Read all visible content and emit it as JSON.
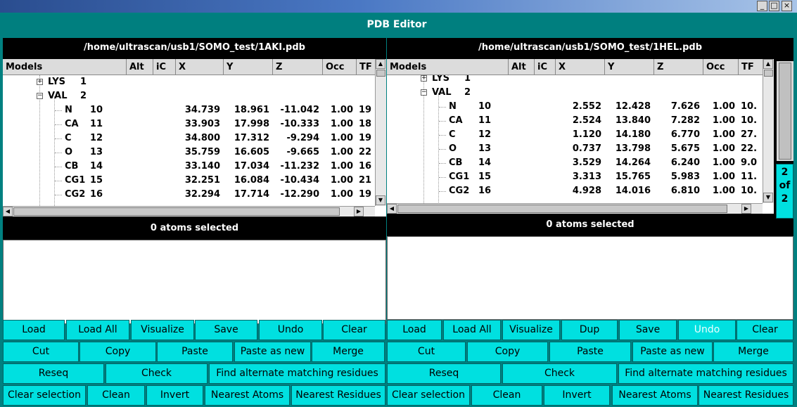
{
  "window": {
    "title": "PDB Editor",
    "buttons": [
      "_",
      "□",
      "×"
    ]
  },
  "columns": [
    "Models",
    "Alt",
    "iC",
    "X",
    "Y",
    "Z",
    "Occ",
    "TF"
  ],
  "left": {
    "path": "/home/ultrascan/usb1/SOMO_test/1AKI.pdb",
    "residues": [
      {
        "name": "LYS",
        "num": "1",
        "expander": "+"
      },
      {
        "name": "VAL",
        "num": "2",
        "expander": "−"
      }
    ],
    "atoms": [
      {
        "name": "N",
        "num": "10",
        "x": "34.739",
        "y": "18.961",
        "z": "-11.042",
        "occ": "1.00",
        "tf": "19"
      },
      {
        "name": "CA",
        "num": "11",
        "x": "33.903",
        "y": "17.998",
        "z": "-10.333",
        "occ": "1.00",
        "tf": "18"
      },
      {
        "name": "C",
        "num": "12",
        "x": "34.800",
        "y": "17.312",
        "z": "-9.294",
        "occ": "1.00",
        "tf": "19"
      },
      {
        "name": "O",
        "num": "13",
        "x": "35.759",
        "y": "16.605",
        "z": "-9.665",
        "occ": "1.00",
        "tf": "22"
      },
      {
        "name": "CB",
        "num": "14",
        "x": "33.140",
        "y": "17.034",
        "z": "-11.232",
        "occ": "1.00",
        "tf": "16"
      },
      {
        "name": "CG1",
        "num": "15",
        "x": "32.251",
        "y": "16.084",
        "z": "-10.434",
        "occ": "1.00",
        "tf": "21"
      },
      {
        "name": "CG2",
        "num": "16",
        "x": "32.294",
        "y": "17.714",
        "z": "-12.290",
        "occ": "1.00",
        "tf": "19"
      }
    ],
    "selection": "0 atoms selected",
    "buttons": [
      [
        "Load",
        "Load All",
        "Visualize",
        "Save",
        "Undo",
        "Clear"
      ],
      [
        "Cut",
        "Copy",
        "Paste",
        "Paste as new",
        "Merge"
      ],
      [
        "Reseq",
        "Check",
        "Find alternate matching residues"
      ],
      [
        "Clear selection",
        "Clean",
        "Invert",
        "Nearest Atoms",
        "Nearest Residues"
      ]
    ]
  },
  "right": {
    "path": "/home/ultrascan/usb1/SOMO_test/1HEL.pdb",
    "residues": [
      {
        "name": "LYS",
        "num": "1",
        "expander": "+"
      },
      {
        "name": "VAL",
        "num": "2",
        "expander": "−"
      }
    ],
    "atoms": [
      {
        "name": "N",
        "num": "10",
        "x": "2.552",
        "y": "12.428",
        "z": "7.626",
        "occ": "1.00",
        "tf": "10."
      },
      {
        "name": "CA",
        "num": "11",
        "x": "2.524",
        "y": "13.840",
        "z": "7.282",
        "occ": "1.00",
        "tf": "10."
      },
      {
        "name": "C",
        "num": "12",
        "x": "1.120",
        "y": "14.180",
        "z": "6.770",
        "occ": "1.00",
        "tf": "27."
      },
      {
        "name": "O",
        "num": "13",
        "x": "0.737",
        "y": "13.798",
        "z": "5.675",
        "occ": "1.00",
        "tf": "22."
      },
      {
        "name": "CB",
        "num": "14",
        "x": "3.529",
        "y": "14.264",
        "z": "6.240",
        "occ": "1.00",
        "tf": "9.0"
      },
      {
        "name": "CG1",
        "num": "15",
        "x": "3.313",
        "y": "15.765",
        "z": "5.983",
        "occ": "1.00",
        "tf": "11."
      },
      {
        "name": "CG2",
        "num": "16",
        "x": "4.928",
        "y": "14.016",
        "z": "6.810",
        "occ": "1.00",
        "tf": "10."
      }
    ],
    "selection": "0 atoms selected",
    "buttons": [
      [
        "Load",
        "Load All",
        "Visualize",
        "Dup",
        "Save",
        "Undo",
        "Clear"
      ],
      [
        "Cut",
        "Copy",
        "Paste",
        "Paste as new",
        "Merge"
      ],
      [
        "Reseq",
        "Check",
        "Find alternate matching residues"
      ],
      [
        "Clear selection",
        "Clean",
        "Invert",
        "Nearest Atoms",
        "Nearest Residues"
      ]
    ],
    "disabled": [
      "Undo"
    ]
  },
  "pager": {
    "current": "2",
    "of": "of",
    "total": "2"
  }
}
